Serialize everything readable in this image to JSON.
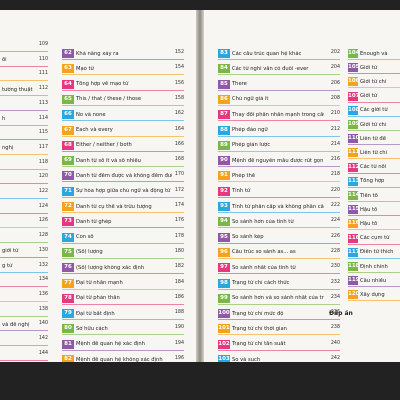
{
  "left_page": {
    "left_column": [
      {
        "text": "",
        "page": "109",
        "color": "#2aa7df"
      },
      {
        "text": "ổi",
        "page": "110",
        "color": "#e6377f"
      },
      {
        "text": "",
        "page": "111",
        "color": "#f4a31d"
      },
      {
        "text": "tường thuật",
        "page": "112",
        "color": "#7ab648"
      },
      {
        "text": "",
        "page": "113",
        "color": "#8e5aa6"
      },
      {
        "text": "h",
        "page": "114",
        "color": "#2aa7df"
      },
      {
        "text": "",
        "page": "115",
        "color": "#e6377f"
      },
      {
        "text": "nghị",
        "page": "117",
        "color": "#f4a31d"
      },
      {
        "text": "",
        "page": "118",
        "color": "#7ab648"
      },
      {
        "text": "",
        "page": "120",
        "color": "#8e5aa6"
      },
      {
        "text": "",
        "page": "122",
        "color": "#2aa7df"
      },
      {
        "text": "",
        "page": "124",
        "color": "#e6377f"
      },
      {
        "text": "",
        "page": "126",
        "color": "#f4a31d"
      },
      {
        "text": "",
        "page": "128",
        "color": "#7ab648"
      },
      {
        "text": "giới từ",
        "page": "130",
        "color": "#8e5aa6"
      },
      {
        "text": "g tử",
        "page": "132",
        "color": "#2aa7df"
      },
      {
        "text": "",
        "page": "134",
        "color": "#e6377f"
      },
      {
        "text": "",
        "page": "136",
        "color": "#f4a31d"
      },
      {
        "text": "",
        "page": "138",
        "color": "#7ab648"
      },
      {
        "text": "và đề nghị",
        "page": "140",
        "color": "#8e5aa6"
      },
      {
        "text": "",
        "page": "142",
        "color": "#2aa7df"
      },
      {
        "text": "",
        "page": "144",
        "color": "#e6377f"
      }
    ],
    "right_column": [
      {
        "num": "62",
        "text": "Khả năng xảy ra",
        "page": "152",
        "color": "#8e5aa6"
      },
      {
        "num": "63",
        "text": "Mạo từ",
        "page": "154",
        "color": "#f4a31d"
      },
      {
        "num": "64",
        "text": "Tổng hợp về mạo từ",
        "page": "156",
        "color": "#e6377f"
      },
      {
        "num": "65",
        "text": "This / that / these / those",
        "page": "158",
        "color": "#7ab648"
      },
      {
        "num": "66",
        "text": "No và none",
        "page": "162",
        "color": "#2aa7df"
      },
      {
        "num": "67",
        "text": "Each và every",
        "page": "164",
        "color": "#f4a31d"
      },
      {
        "num": "68",
        "text": "Either / neither / both",
        "page": "166",
        "color": "#e6377f"
      },
      {
        "num": "69",
        "text": "Danh từ số ít và số nhiều",
        "page": "168",
        "color": "#7ab648"
      },
      {
        "num": "70",
        "text": "Danh từ đếm được và không đếm được",
        "page": "170",
        "color": "#8e5aa6"
      },
      {
        "num": "71",
        "text": "Sự hòa hợp giữa chủ ngữ và động từ",
        "page": "172",
        "color": "#2aa7df"
      },
      {
        "num": "72",
        "text": "Danh từ cụ thể và trừu tượng",
        "page": "174",
        "color": "#f4a31d"
      },
      {
        "num": "73",
        "text": "Danh từ ghép",
        "page": "176",
        "color": "#e6377f"
      },
      {
        "num": "74",
        "text": "Con số",
        "page": "178",
        "color": "#2aa7df"
      },
      {
        "num": "75",
        "text": "(Số) lượng",
        "page": "180",
        "color": "#7ab648"
      },
      {
        "num": "76",
        "text": "(Số) lượng không xác định",
        "page": "182",
        "color": "#8e5aa6"
      },
      {
        "num": "77",
        "text": "Đại từ nhấn mạnh",
        "page": "184",
        "color": "#f4a31d"
      },
      {
        "num": "78",
        "text": "Đại từ phản thân",
        "page": "186",
        "color": "#e6377f"
      },
      {
        "num": "79",
        "text": "Đại từ bất định",
        "page": "188",
        "color": "#2aa7df"
      },
      {
        "num": "80",
        "text": "Sở hữu cách",
        "page": "190",
        "color": "#7ab648"
      },
      {
        "num": "81",
        "text": "Mệnh đề quan hệ xác định",
        "page": "194",
        "color": "#8e5aa6"
      },
      {
        "num": "82",
        "text": "Mệnh đề quan hệ không xác định",
        "page": "196",
        "color": "#f4a31d"
      }
    ]
  },
  "right_page": {
    "left_column": [
      {
        "num": "83",
        "text": "Các cấu trúc quan hệ khác",
        "page": "202",
        "color": "#2aa7df"
      },
      {
        "num": "84",
        "text": "Các từ nghi vấn có đuôi -ever",
        "page": "204",
        "color": "#7ab648"
      },
      {
        "num": "85",
        "text": "There",
        "page": "206",
        "color": "#8e5aa6"
      },
      {
        "num": "86",
        "text": "Chủ ngữ giả it",
        "page": "208",
        "color": "#f4a31d"
      },
      {
        "num": "87",
        "text": "Thay đổi phân nhấn mạnh trong câu",
        "page": "210",
        "color": "#e6377f"
      },
      {
        "num": "88",
        "text": "Phép đảo ngữ",
        "page": "212",
        "color": "#2aa7df"
      },
      {
        "num": "89",
        "text": "Phép giản lược",
        "page": "214",
        "color": "#7ab648"
      },
      {
        "num": "90",
        "text": "Mệnh đề nguyên mẫu được rút gọn",
        "page": "216",
        "color": "#8e5aa6"
      },
      {
        "num": "91",
        "text": "Phép thế",
        "page": "218",
        "color": "#f4a31d"
      },
      {
        "num": "92",
        "text": "Tính từ",
        "page": "220",
        "color": "#e6377f"
      },
      {
        "num": "93",
        "text": "Tính từ phân cấp và không phân cấp",
        "page": "222",
        "color": "#2aa7df"
      },
      {
        "num": "94",
        "text": "So sánh hơn của tính từ",
        "page": "224",
        "color": "#7ab648"
      },
      {
        "num": "95",
        "text": "So sánh kép",
        "page": "226",
        "color": "#8e5aa6"
      },
      {
        "num": "96",
        "text": "Cấu trúc so sánh as... as",
        "page": "228",
        "color": "#f4a31d"
      },
      {
        "num": "97",
        "text": "So sánh nhất của tính từ",
        "page": "230",
        "color": "#e6377f"
      },
      {
        "num": "98",
        "text": "Trạng từ chỉ cách thức",
        "page": "232",
        "color": "#2aa7df"
      },
      {
        "num": "99",
        "text": "So sánh hơn và so sánh nhất của trạng từ",
        "page": "234",
        "color": "#7ab648"
      },
      {
        "num": "100",
        "text": "Trạng từ chỉ mức độ",
        "page": "236",
        "color": "#8e5aa6"
      },
      {
        "num": "101",
        "text": "Trạng từ chỉ thời gian",
        "page": "238",
        "color": "#f4a31d"
      },
      {
        "num": "102",
        "text": "Trạng từ chỉ tần suất",
        "page": "240",
        "color": "#e6377f"
      },
      {
        "num": "103",
        "text": "So và such",
        "page": "242",
        "color": "#2aa7df"
      }
    ],
    "right_column": [
      {
        "num": "104",
        "text": "Enough và",
        "color": "#7ab648"
      },
      {
        "num": "105",
        "text": "Giới từ",
        "color": "#8e5aa6"
      },
      {
        "num": "106",
        "text": "Giới từ chỉ",
        "color": "#f4a31d"
      },
      {
        "num": "107",
        "text": "Giới từ",
        "color": "#e6377f"
      },
      {
        "num": "108",
        "text": "Các giới từ",
        "color": "#2aa7df"
      },
      {
        "num": "109",
        "text": "Giới từ chỉ",
        "color": "#7ab648"
      },
      {
        "num": "110",
        "text": "Liên từ để",
        "color": "#8e5aa6"
      },
      {
        "num": "111",
        "text": "Liên từ chỉ",
        "color": "#f4a31d"
      },
      {
        "num": "112",
        "text": "Các từ nối",
        "color": "#e6377f"
      },
      {
        "num": "113",
        "text": "Tổng hợp",
        "color": "#2aa7df"
      },
      {
        "num": "114",
        "text": "Tiền tố",
        "color": "#7ab648"
      },
      {
        "num": "115",
        "text": "Hậu tố",
        "color": "#8e5aa6"
      },
      {
        "num": "116",
        "text": "Hậu tố",
        "color": "#f4a31d"
      },
      {
        "num": "116",
        "text": "Các cụm từ",
        "color": "#e6377f"
      },
      {
        "num": "117",
        "text": "Điền từ thích",
        "color": "#2aa7df"
      },
      {
        "num": "118",
        "text": "Định chính",
        "color": "#7ab648"
      },
      {
        "num": "119",
        "text": "Cấu nhiều",
        "color": "#8e5aa6"
      },
      {
        "num": "120",
        "text": "Xây dựng",
        "color": "#f4a31d"
      }
    ],
    "footer_label": "Đáp án"
  }
}
